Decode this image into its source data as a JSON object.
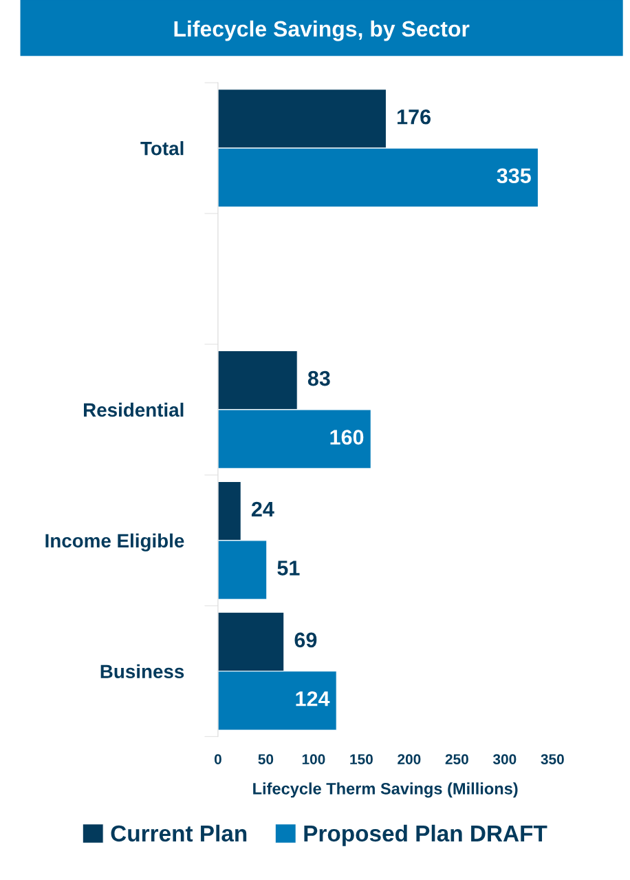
{
  "chart_data": {
    "type": "bar",
    "orientation": "horizontal",
    "title": "Lifecycle Savings, by Sector",
    "categories": [
      "Total",
      null,
      "Residential",
      "Income Eligible",
      "Business"
    ],
    "series": [
      {
        "name": "Current Plan",
        "color": "#033a5c",
        "values": [
          176,
          null,
          83,
          24,
          69
        ]
      },
      {
        "name": "Proposed Plan DRAFT",
        "color": "#007ab8",
        "values": [
          335,
          null,
          160,
          51,
          124
        ]
      }
    ],
    "xlabel": "Lifecycle Therm Savings (Millions)",
    "xlim": [
      0,
      350
    ],
    "xticks": [
      0,
      50,
      100,
      150,
      200,
      250,
      300,
      350
    ],
    "data_labels": true,
    "grid": false,
    "legend": "bottom"
  }
}
